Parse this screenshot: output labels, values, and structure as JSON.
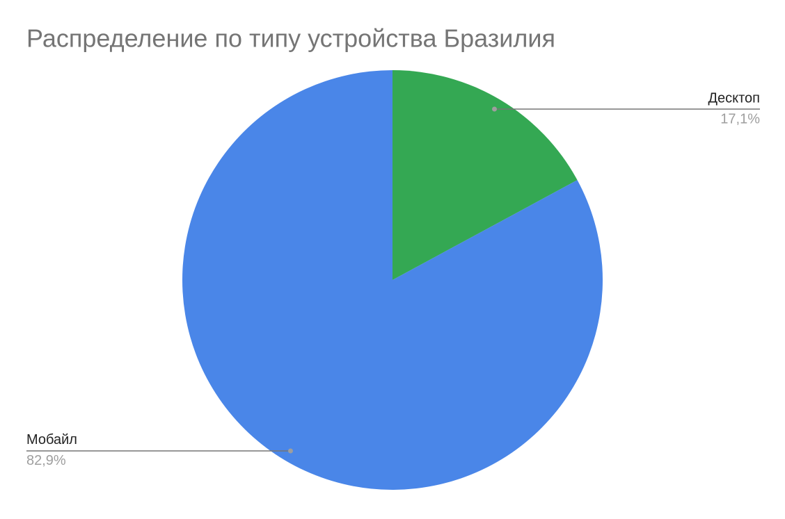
{
  "chart_data": {
    "type": "pie",
    "title": "Распределение по типу устройства Бразилия",
    "categories": [
      "Десктоп",
      "Мобайл"
    ],
    "values": [
      17.1,
      82.9
    ],
    "value_labels": [
      "17,1%",
      "82,9%"
    ],
    "colors": [
      "#34a853",
      "#4a86e8"
    ]
  }
}
